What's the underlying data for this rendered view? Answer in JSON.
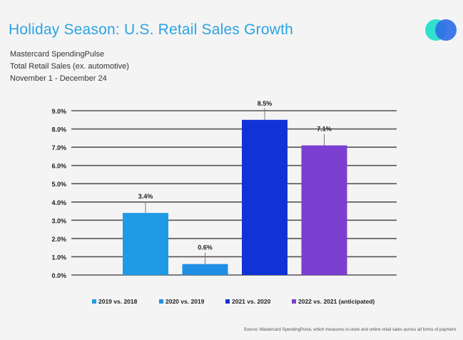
{
  "header": {
    "title": "Holiday Season: U.S. Retail Sales Growth",
    "subtitle_lines": [
      "Mastercard SpendingPulse",
      "Total Retail Sales (ex. automotive)",
      "November 1  - December 24"
    ]
  },
  "logo": {
    "icon": "mastercard-overlapping-circles-icon",
    "colors": [
      "#33e0d0",
      "#2f6fe6"
    ]
  },
  "chart_data": {
    "type": "bar",
    "title": "Holiday Season: U.S. Retail Sales Growth",
    "categories": [
      "2019 vs. 2018",
      "2020 vs. 2019",
      "2021 vs. 2020",
      "2022 vs. 2021 (anticipated)"
    ],
    "values": [
      3.4,
      0.6,
      8.5,
      7.1
    ],
    "value_labels": [
      "3.4%",
      "0.6%",
      "8.5%",
      "7.1%"
    ],
    "colors": [
      "#1f9be6",
      "#1f8fe6",
      "#1133d6",
      "#7a3fd0"
    ],
    "ylim": [
      0,
      9
    ],
    "yticks": [
      "0.0%",
      "1.0%",
      "2.0%",
      "3.0%",
      "4.0%",
      "5.0%",
      "6.0%",
      "7.0%",
      "8.0%",
      "9.0%"
    ],
    "grid": true,
    "legend_position": "bottom",
    "xlabel": "",
    "ylabel": ""
  },
  "footer": {
    "source": "Source: Mastercard SpendingPulse, which measures in-store and online retail sales across all forms of payment"
  }
}
